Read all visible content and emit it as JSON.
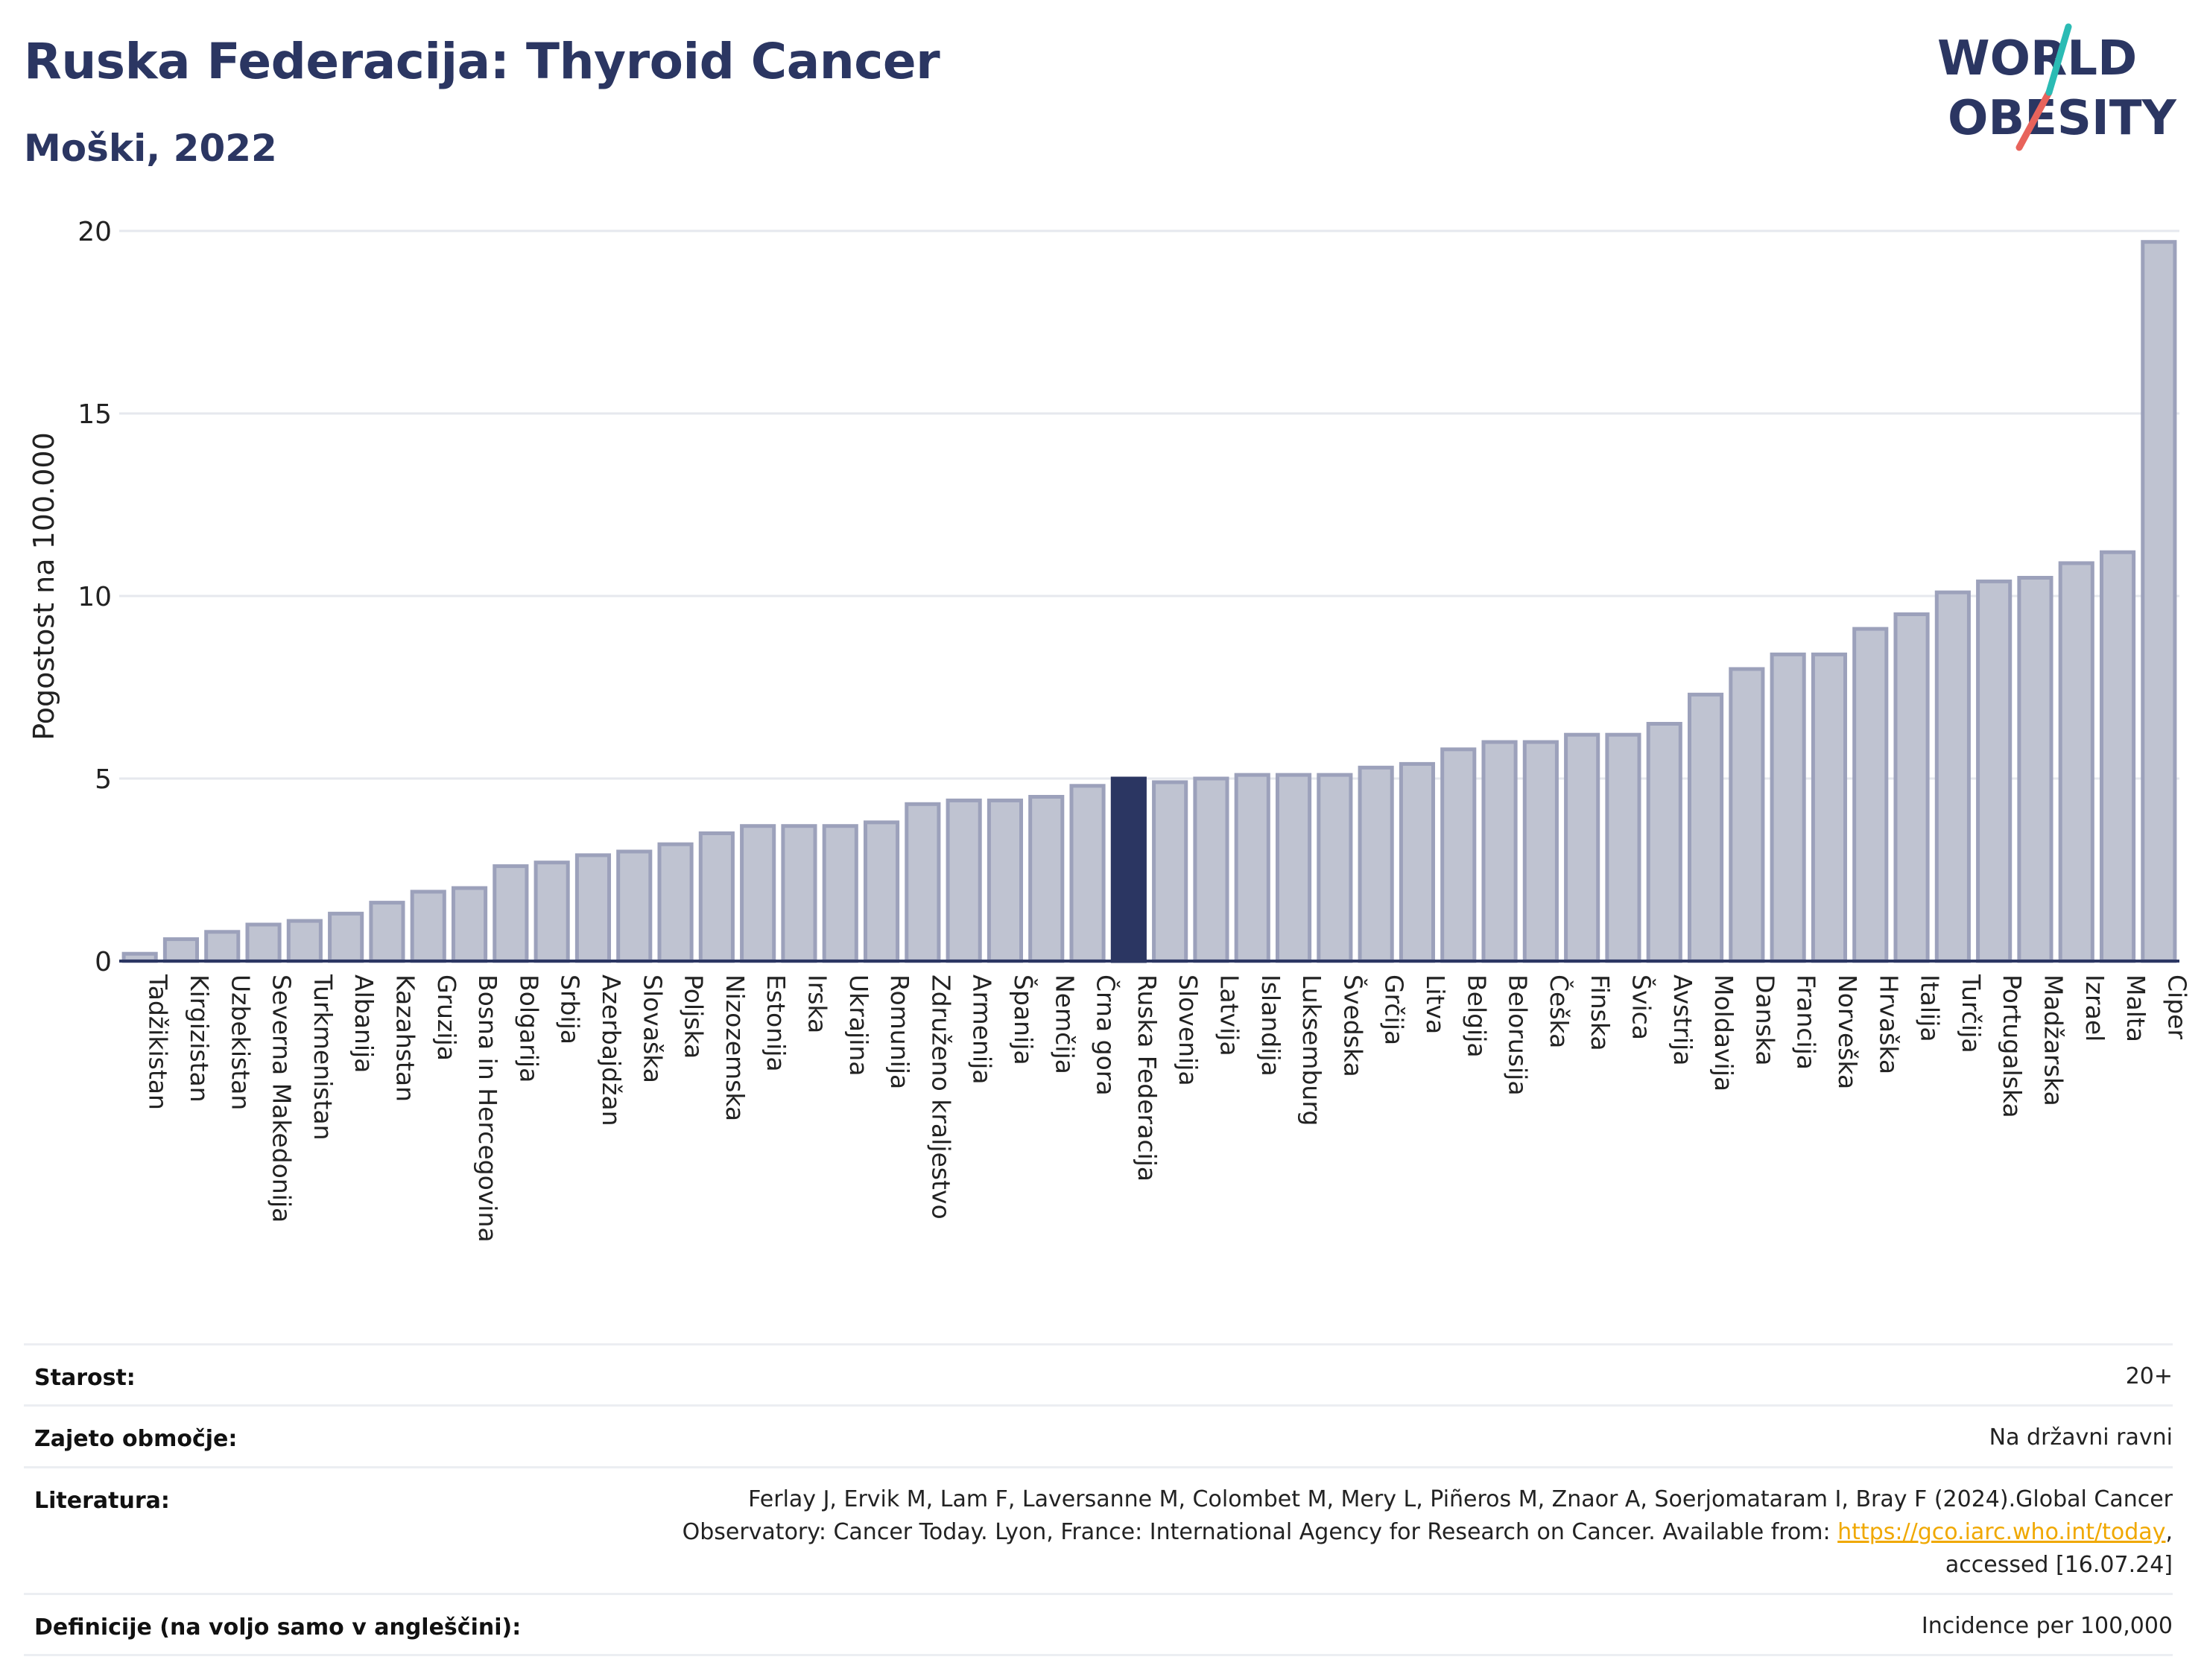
{
  "header": {
    "title": "Ruska Federacija: Thyroid Cancer",
    "subtitle": "Moški, 2022"
  },
  "logo": {
    "line1": "WORLD",
    "line2": "OBESITY",
    "colors": {
      "text": "#2b3662",
      "slash_teal": "#2bbbb4",
      "slash_red": "#e8635b"
    }
  },
  "colors": {
    "bar_fill": "#bfc3d1",
    "bar_stroke": "#9ca1bb",
    "highlight_fill": "#2b3662",
    "grid": "#e6e8ee",
    "axis": "#2b3662"
  },
  "chart_data": {
    "type": "bar",
    "title": "Ruska Federacija: Thyroid Cancer",
    "subtitle": "Moški, 2022",
    "xlabel": "",
    "ylabel": "Pogostost na 100.000",
    "ylim": [
      0,
      20
    ],
    "yticks": [
      0,
      5,
      10,
      15,
      20
    ],
    "grid": true,
    "highlight": "Ruska Federacija",
    "categories": [
      "Tadžikistan",
      "Kirgizistan",
      "Uzbekistan",
      "Severna Makedonija",
      "Turkmenistan",
      "Albanija",
      "Kazahstan",
      "Gruzija",
      "Bosna in Hercegovina",
      "Bolgarija",
      "Srbija",
      "Azerbajdžan",
      "Slovaška",
      "Poljska",
      "Nizozemska",
      "Estonija",
      "Irska",
      "Ukrajina",
      "Romunija",
      "Združeno kraljestvo",
      "Armenija",
      "Španija",
      "Nemčija",
      "Črna gora",
      "Ruska Federacija",
      "Slovenija",
      "Latvija",
      "Islandija",
      "Luksemburg",
      "Švedska",
      "Grčija",
      "Litva",
      "Belgija",
      "Belorusija",
      "Češka",
      "Finska",
      "Švica",
      "Avstrija",
      "Moldavija",
      "Danska",
      "Francija",
      "Norveška",
      "Hrvaška",
      "Italija",
      "Turčija",
      "Portugalska",
      "Madžarska",
      "Izrael",
      "Malta",
      "Ciper"
    ],
    "values": [
      0.2,
      0.6,
      0.8,
      1.0,
      1.1,
      1.3,
      1.6,
      1.9,
      2.0,
      2.6,
      2.7,
      2.9,
      3.0,
      3.2,
      3.5,
      3.7,
      3.7,
      3.7,
      3.8,
      4.3,
      4.4,
      4.4,
      4.5,
      4.8,
      5.0,
      4.9,
      5.0,
      5.1,
      5.1,
      5.1,
      5.3,
      5.4,
      5.8,
      6.0,
      6.0,
      6.2,
      6.2,
      6.5,
      7.3,
      8.0,
      8.4,
      8.4,
      9.1,
      9.5,
      10.1,
      10.4,
      10.5,
      10.9,
      11.2,
      19.7
    ]
  },
  "meta": {
    "rows": [
      {
        "label": "Starost:",
        "value_lines": [
          "20+"
        ]
      },
      {
        "label": "Zajeto območje:",
        "value_lines": [
          "Na državni ravni"
        ]
      },
      {
        "label": "Literatura:",
        "value_lines": [
          "Ferlay J, Ervik M, Lam F, Laversanne M, Colombet M, Mery L, Piñeros M, Znaor A, Soerjomataram I, Bray F (2024).Global Cancer",
          "Observatory: Cancer Today. Lyon, France: International Agency for Research on Cancer. Available from: ",
          "accessed [16.07.24]"
        ],
        "link": "https://gco.iarc.who.int/today",
        "link_suffix": ","
      },
      {
        "label": "Definicije (na voljo samo v angleščini):",
        "value_lines": [
          "Incidence per 100,000"
        ]
      }
    ]
  }
}
